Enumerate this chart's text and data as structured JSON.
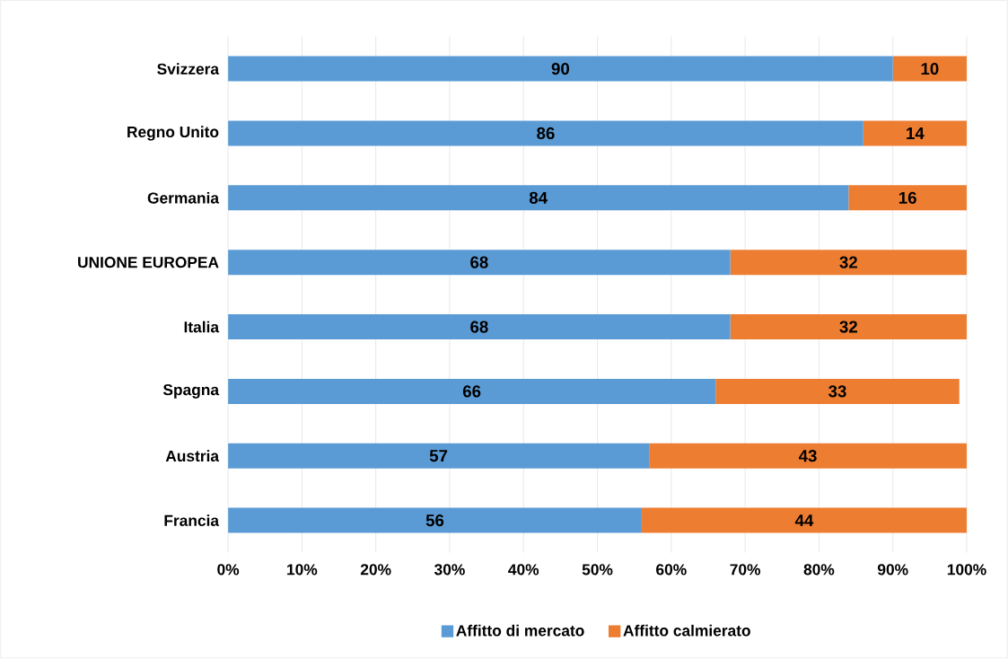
{
  "chart_data": {
    "type": "bar",
    "orientation": "horizontal",
    "stacked": true,
    "categories": [
      "Svizzera",
      "Regno Unito",
      "Germania",
      "UNIONE EUROPEA",
      "Italia",
      "Spagna",
      "Austria",
      "Francia"
    ],
    "series": [
      {
        "name": "Affitto di mercato",
        "color": "#5b9bd5",
        "values": [
          90,
          86,
          84,
          68,
          68,
          66,
          57,
          56
        ]
      },
      {
        "name": "Affitto calmierato",
        "color": "#ed7d31",
        "values": [
          10,
          14,
          16,
          32,
          32,
          33,
          43,
          44
        ]
      }
    ],
    "xlim": [
      0,
      100
    ],
    "xticks": [
      {
        "value": 0,
        "label": "0%"
      },
      {
        "value": 10,
        "label": "10%"
      },
      {
        "value": 20,
        "label": "20%"
      },
      {
        "value": 30,
        "label": "30%"
      },
      {
        "value": 40,
        "label": "40%"
      },
      {
        "value": 50,
        "label": "50%"
      },
      {
        "value": 60,
        "label": "60%"
      },
      {
        "value": 70,
        "label": "70%"
      },
      {
        "value": 80,
        "label": "80%"
      },
      {
        "value": 90,
        "label": "90%"
      },
      {
        "value": 100,
        "label": "100%"
      }
    ],
    "grid": "x",
    "legend": "bottom",
    "data_labels": true
  }
}
